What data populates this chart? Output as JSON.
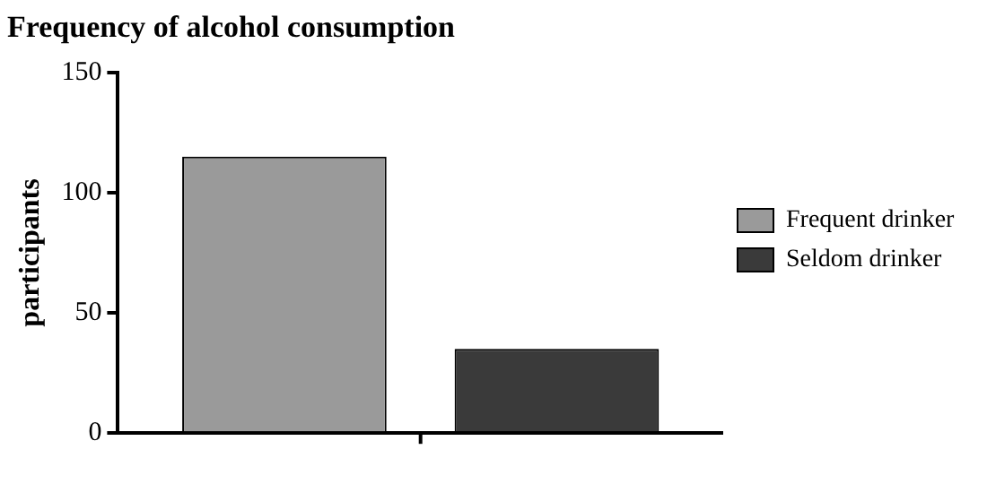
{
  "chart_data": {
    "type": "bar",
    "title": "Frequency of alcohol consumption",
    "ylabel": "participants",
    "categories": [
      null
    ],
    "series": [
      {
        "name": "Frequent drinker",
        "color": "#9a9a9a",
        "values": [
          115
        ]
      },
      {
        "name": "Seldom drinker",
        "color": "#3a3a3a",
        "values": [
          35
        ]
      }
    ],
    "ylim": [
      0,
      150
    ],
    "yticks": [
      0,
      50,
      100,
      150
    ],
    "grid": false,
    "legend": "right"
  }
}
